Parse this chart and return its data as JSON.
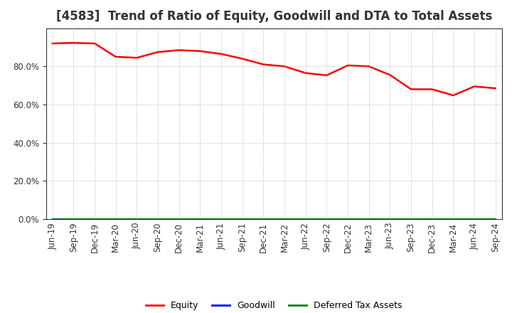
{
  "title": "[4583]  Trend of Ratio of Equity, Goodwill and DTA to Total Assets",
  "x_labels": [
    "Jun-19",
    "Sep-19",
    "Dec-19",
    "Mar-20",
    "Jun-20",
    "Sep-20",
    "Dec-20",
    "Mar-21",
    "Jun-21",
    "Sep-21",
    "Dec-21",
    "Mar-22",
    "Jun-22",
    "Sep-22",
    "Dec-22",
    "Mar-23",
    "Jun-23",
    "Sep-23",
    "Dec-23",
    "Mar-24",
    "Jun-24",
    "Sep-24"
  ],
  "equity": [
    0.92,
    0.923,
    0.92,
    0.85,
    0.845,
    0.875,
    0.885,
    0.88,
    0.865,
    0.84,
    0.81,
    0.8,
    0.765,
    0.753,
    0.805,
    0.8,
    0.755,
    0.68,
    0.68,
    0.648,
    0.695,
    0.685
  ],
  "goodwill": [
    0.0,
    0.0,
    0.0,
    0.0,
    0.0,
    0.0,
    0.0,
    0.0,
    0.0,
    0.0,
    0.0,
    0.0,
    0.0,
    0.0,
    0.0,
    0.0,
    0.0,
    0.0,
    0.0,
    0.0,
    0.0,
    0.0
  ],
  "dta": [
    0.0,
    0.0,
    0.0,
    0.0,
    0.0,
    0.0,
    0.0,
    0.0,
    0.0,
    0.0,
    0.0,
    0.0,
    0.0,
    0.0,
    0.0,
    0.0,
    0.0,
    0.0,
    0.0,
    0.0,
    0.0,
    0.0
  ],
  "equity_color": "#FF0000",
  "goodwill_color": "#0000FF",
  "dta_color": "#008000",
  "background_color": "#FFFFFF",
  "plot_bg_color": "#FFFFFF",
  "grid_color": "#999999",
  "ylim": [
    0.0,
    1.0
  ],
  "yticks": [
    0.0,
    0.2,
    0.4,
    0.6,
    0.8
  ],
  "title_fontsize": 12,
  "tick_fontsize": 8.5,
  "legend_labels": [
    "Equity",
    "Goodwill",
    "Deferred Tax Assets"
  ]
}
